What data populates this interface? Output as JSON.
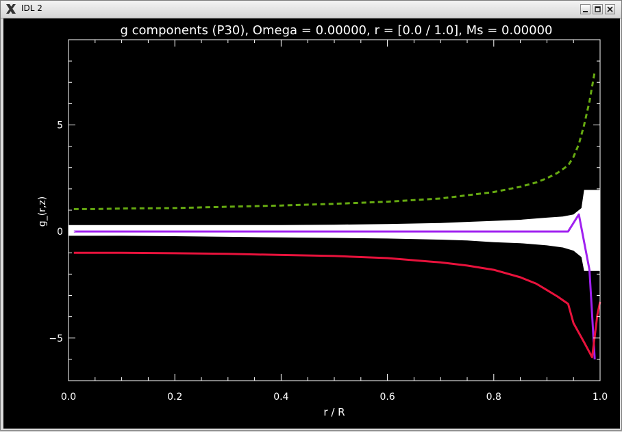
{
  "window": {
    "title": "IDL 2",
    "app_icon": "x11-icon",
    "controls": [
      "minimize-icon",
      "maximize-icon",
      "close-icon"
    ]
  },
  "colors": {
    "background": "#000000",
    "axes": "#ffffff",
    "band": "#ffffff",
    "green": "#66aa11",
    "purple": "#a020f0",
    "red": "#e8123c"
  },
  "chart_data": {
    "type": "line",
    "title": "g components (P30), Omega =  0.00000, r = [0.0 / 1.0], Ms =  0.00000",
    "xlabel": "r / R",
    "ylabel": "g_(r,z)",
    "xlim": [
      0.0,
      1.0
    ],
    "ylim": [
      -7.0,
      9.0
    ],
    "xticks": [
      0.0,
      0.2,
      0.4,
      0.6,
      0.8,
      1.0
    ],
    "xtick_labels": [
      "0.0",
      "0.2",
      "0.4",
      "0.6",
      "0.8",
      "1.0"
    ],
    "yticks": [
      -5,
      0,
      5
    ],
    "ytick_labels": [
      "−5",
      "0",
      "5"
    ],
    "grid": false,
    "legend": "none",
    "band": {
      "x": [
        0.0,
        0.1,
        0.2,
        0.3,
        0.4,
        0.5,
        0.6,
        0.7,
        0.75,
        0.8,
        0.85,
        0.9,
        0.93,
        0.95,
        0.965,
        0.97,
        1.0
      ],
      "upper": [
        0.3,
        0.3,
        0.3,
        0.3,
        0.3,
        0.32,
        0.35,
        0.4,
        0.45,
        0.5,
        0.55,
        0.65,
        0.7,
        0.8,
        1.1,
        1.95,
        1.95
      ],
      "lower": [
        -0.2,
        -0.2,
        -0.22,
        -0.25,
        -0.28,
        -0.3,
        -0.33,
        -0.38,
        -0.42,
        -0.5,
        -0.55,
        -0.65,
        -0.75,
        -0.9,
        -1.2,
        -1.85,
        -1.85
      ]
    },
    "series": [
      {
        "color": "#66aa11",
        "style": "dashed",
        "x": [
          0.01,
          0.05,
          0.1,
          0.2,
          0.3,
          0.4,
          0.5,
          0.6,
          0.7,
          0.75,
          0.8,
          0.85,
          0.88,
          0.9,
          0.92,
          0.94,
          0.95,
          0.96,
          0.97,
          0.98,
          0.99
        ],
        "y": [
          1.05,
          1.05,
          1.08,
          1.1,
          1.16,
          1.22,
          1.3,
          1.4,
          1.55,
          1.7,
          1.85,
          2.1,
          2.3,
          2.5,
          2.75,
          3.1,
          3.5,
          4.1,
          5.0,
          6.1,
          7.5
        ]
      },
      {
        "color": "#a020f0",
        "style": "solid",
        "x": [
          0.01,
          0.2,
          0.4,
          0.6,
          0.8,
          0.9,
          0.94,
          0.96,
          0.98,
          0.99
        ],
        "y": [
          0.0,
          0.0,
          0.0,
          0.0,
          0.0,
          0.0,
          0.0,
          0.8,
          -1.8,
          -6.0
        ]
      },
      {
        "color": "#e8123c",
        "style": "solid",
        "x": [
          0.01,
          0.05,
          0.1,
          0.2,
          0.3,
          0.4,
          0.5,
          0.6,
          0.7,
          0.75,
          0.8,
          0.85,
          0.88,
          0.9,
          0.92,
          0.94,
          0.95,
          0.97,
          0.985,
          0.995,
          1.0
        ],
        "y": [
          -1.0,
          -1.0,
          -1.0,
          -1.02,
          -1.05,
          -1.1,
          -1.15,
          -1.25,
          -1.45,
          -1.6,
          -1.8,
          -2.15,
          -2.45,
          -2.75,
          -3.05,
          -3.4,
          -4.3,
          -5.2,
          -5.9,
          -3.9,
          -3.3
        ]
      }
    ]
  }
}
